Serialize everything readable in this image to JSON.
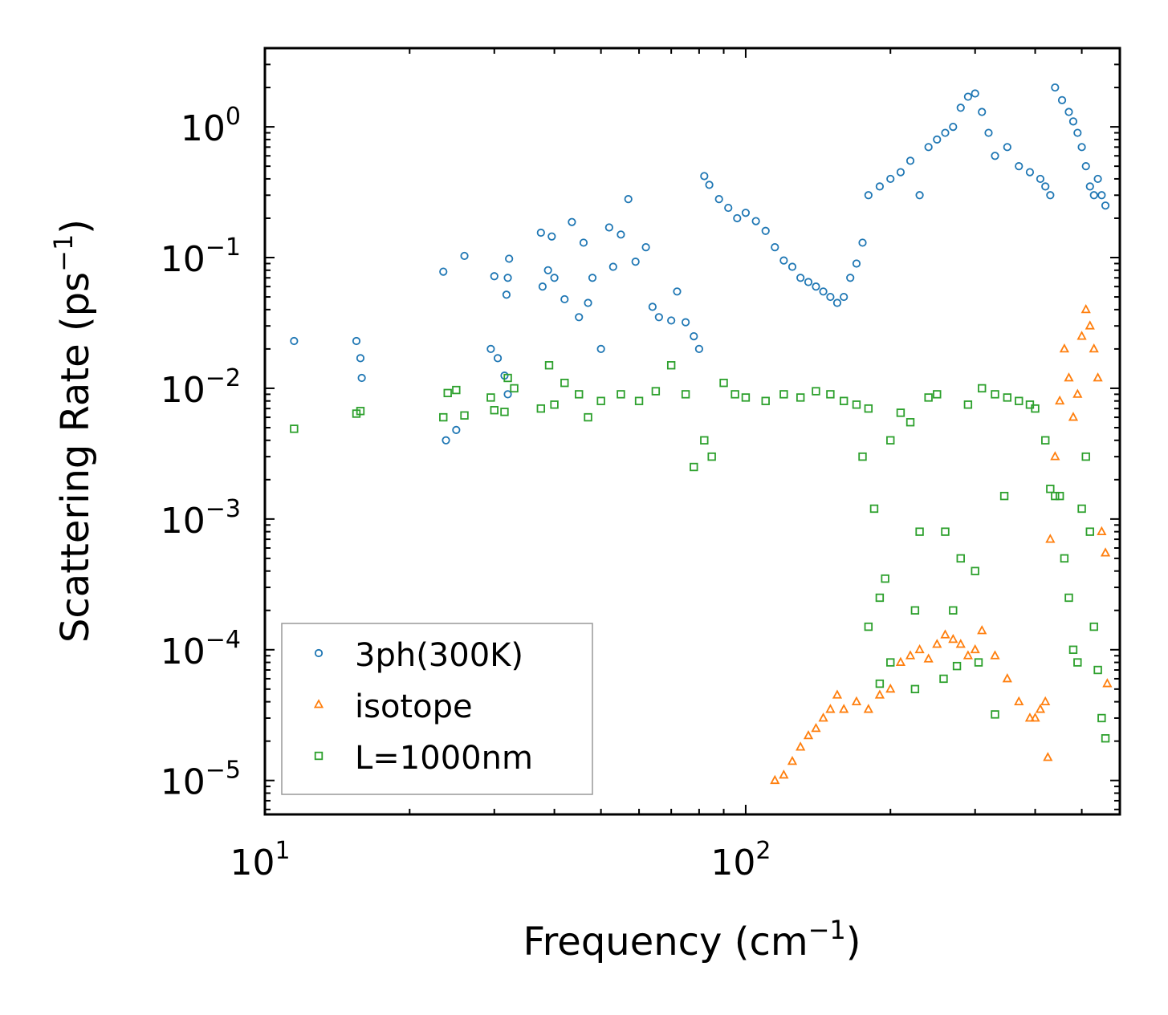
{
  "chart_data": {
    "type": "scatter",
    "x_scale": "log",
    "y_scale": "log",
    "xlabel": "Frequency (cm",
    "xlabel_sup": "−1",
    "xlabel_end": ")",
    "ylabel": "Scattering Rate (ps",
    "ylabel_sup": "−1",
    "ylabel_end": ")",
    "xlim": [
      10,
      600
    ],
    "ylim": [
      5.5e-06,
      4
    ],
    "x_ticks": [
      {
        "value": 10,
        "base": "10",
        "exp": "1"
      },
      {
        "value": 100,
        "base": "10",
        "exp": "2"
      }
    ],
    "y_ticks": [
      {
        "value": 1,
        "base": "10",
        "exp": "0"
      },
      {
        "value": 0.1,
        "base": "10",
        "exp": "−1"
      },
      {
        "value": 0.01,
        "base": "10",
        "exp": "−2"
      },
      {
        "value": 0.001,
        "base": "10",
        "exp": "−3"
      },
      {
        "value": 0.0001,
        "base": "10",
        "exp": "−4"
      },
      {
        "value": 1e-05,
        "base": "10",
        "exp": "−5"
      }
    ],
    "legend_position": "lower-left",
    "series": [
      {
        "name": "3ph(300K)",
        "marker": "circle",
        "color": "#1f77b4",
        "points": [
          [
            11.5,
            0.023
          ],
          [
            15.5,
            0.023
          ],
          [
            15.8,
            0.017
          ],
          [
            15.9,
            0.012
          ],
          [
            23.5,
            0.078
          ],
          [
            23.8,
            0.004
          ],
          [
            25,
            0.0048
          ],
          [
            26,
            0.103
          ],
          [
            29.5,
            0.02
          ],
          [
            30,
            0.072
          ],
          [
            30.5,
            0.017
          ],
          [
            31.5,
            0.0125
          ],
          [
            31.8,
            0.052
          ],
          [
            32,
            0.07
          ],
          [
            32.2,
            0.098
          ],
          [
            32,
            0.009
          ],
          [
            37.5,
            0.155
          ],
          [
            37.8,
            0.06
          ],
          [
            38.8,
            0.08
          ],
          [
            39.5,
            0.145
          ],
          [
            40,
            0.07
          ],
          [
            42,
            0.048
          ],
          [
            43.5,
            0.187
          ],
          [
            45,
            0.035
          ],
          [
            46,
            0.13
          ],
          [
            47,
            0.045
          ],
          [
            48,
            0.07
          ],
          [
            50,
            0.02
          ],
          [
            52,
            0.17
          ],
          [
            53,
            0.085
          ],
          [
            55,
            0.15
          ],
          [
            57,
            0.28
          ],
          [
            59,
            0.093
          ],
          [
            62,
            0.12
          ],
          [
            64,
            0.042
          ],
          [
            66,
            0.035
          ],
          [
            70,
            0.033
          ],
          [
            72,
            0.055
          ],
          [
            75,
            0.032
          ],
          [
            78,
            0.025
          ],
          [
            80,
            0.02
          ],
          [
            82,
            0.42
          ],
          [
            84,
            0.36
          ],
          [
            88,
            0.28
          ],
          [
            92,
            0.24
          ],
          [
            96,
            0.2
          ],
          [
            100,
            0.22
          ],
          [
            105,
            0.19
          ],
          [
            110,
            0.16
          ],
          [
            115,
            0.12
          ],
          [
            120,
            0.095
          ],
          [
            125,
            0.085
          ],
          [
            130,
            0.07
          ],
          [
            135,
            0.065
          ],
          [
            140,
            0.06
          ],
          [
            145,
            0.055
          ],
          [
            150,
            0.05
          ],
          [
            155,
            0.045
          ],
          [
            160,
            0.05
          ],
          [
            165,
            0.07
          ],
          [
            170,
            0.09
          ],
          [
            175,
            0.13
          ],
          [
            180,
            0.3
          ],
          [
            190,
            0.35
          ],
          [
            200,
            0.4
          ],
          [
            210,
            0.45
          ],
          [
            220,
            0.55
          ],
          [
            230,
            0.3
          ],
          [
            240,
            0.7
          ],
          [
            250,
            0.8
          ],
          [
            260,
            0.9
          ],
          [
            270,
            1.0
          ],
          [
            280,
            1.4
          ],
          [
            290,
            1.7
          ],
          [
            300,
            1.8
          ],
          [
            310,
            1.3
          ],
          [
            320,
            0.9
          ],
          [
            330,
            0.6
          ],
          [
            350,
            0.7
          ],
          [
            370,
            0.5
          ],
          [
            390,
            0.45
          ],
          [
            410,
            0.4
          ],
          [
            420,
            0.35
          ],
          [
            430,
            0.3
          ],
          [
            440,
            2.0
          ],
          [
            455,
            1.6
          ],
          [
            470,
            1.3
          ],
          [
            480,
            1.1
          ],
          [
            490,
            0.9
          ],
          [
            500,
            0.7
          ],
          [
            510,
            0.5
          ],
          [
            520,
            0.35
          ],
          [
            530,
            0.3
          ],
          [
            540,
            0.4
          ],
          [
            550,
            0.3
          ],
          [
            560,
            0.25
          ]
        ]
      },
      {
        "name": "isotope",
        "marker": "triangle",
        "color": "#ff7f0e",
        "points": [
          [
            115,
            1e-05
          ],
          [
            120,
            1.1e-05
          ],
          [
            125,
            1.4e-05
          ],
          [
            130,
            1.8e-05
          ],
          [
            135,
            2.2e-05
          ],
          [
            140,
            2.5e-05
          ],
          [
            145,
            3e-05
          ],
          [
            150,
            3.5e-05
          ],
          [
            155,
            4.5e-05
          ],
          [
            160,
            3.5e-05
          ],
          [
            170,
            4e-05
          ],
          [
            180,
            3.5e-05
          ],
          [
            190,
            4.5e-05
          ],
          [
            200,
            5e-05
          ],
          [
            210,
            8e-05
          ],
          [
            220,
            9e-05
          ],
          [
            230,
            0.0001
          ],
          [
            240,
            8.5e-05
          ],
          [
            250,
            0.00011
          ],
          [
            260,
            0.00013
          ],
          [
            270,
            0.00012
          ],
          [
            280,
            0.00011
          ],
          [
            290,
            9e-05
          ],
          [
            300,
            0.0001
          ],
          [
            310,
            0.00014
          ],
          [
            330,
            9e-05
          ],
          [
            350,
            6e-05
          ],
          [
            370,
            4e-05
          ],
          [
            390,
            3e-05
          ],
          [
            400,
            3e-05
          ],
          [
            410,
            3.5e-05
          ],
          [
            420,
            4e-05
          ],
          [
            430,
            0.0007
          ],
          [
            440,
            0.003
          ],
          [
            450,
            0.008
          ],
          [
            460,
            0.02
          ],
          [
            470,
            0.012
          ],
          [
            480,
            0.006
          ],
          [
            490,
            0.009
          ],
          [
            500,
            0.025
          ],
          [
            510,
            0.04
          ],
          [
            520,
            0.03
          ],
          [
            530,
            0.02
          ],
          [
            540,
            0.012
          ],
          [
            550,
            0.0008
          ],
          [
            560,
            0.00055
          ],
          [
            565,
            5.5e-05
          ],
          [
            425,
            1.5e-05
          ]
        ]
      },
      {
        "name": "L=1000nm",
        "marker": "square",
        "color": "#2ca02c",
        "points": [
          [
            11.5,
            0.0049
          ],
          [
            15.5,
            0.0064
          ],
          [
            15.8,
            0.0067
          ],
          [
            23.5,
            0.006
          ],
          [
            24,
            0.0092
          ],
          [
            25,
            0.0097
          ],
          [
            26,
            0.0062
          ],
          [
            29.5,
            0.0085
          ],
          [
            30,
            0.0068
          ],
          [
            31.5,
            0.0066
          ],
          [
            32,
            0.012
          ],
          [
            33,
            0.01
          ],
          [
            37.5,
            0.007
          ],
          [
            39,
            0.015
          ],
          [
            40,
            0.0075
          ],
          [
            42,
            0.011
          ],
          [
            45,
            0.009
          ],
          [
            47,
            0.006
          ],
          [
            50,
            0.008
          ],
          [
            55,
            0.009
          ],
          [
            60,
            0.008
          ],
          [
            65,
            0.0095
          ],
          [
            70,
            0.015
          ],
          [
            75,
            0.009
          ],
          [
            78,
            0.0025
          ],
          [
            82,
            0.004
          ],
          [
            85,
            0.003
          ],
          [
            90,
            0.011
          ],
          [
            95,
            0.009
          ],
          [
            100,
            0.0085
          ],
          [
            110,
            0.008
          ],
          [
            120,
            0.009
          ],
          [
            130,
            0.0085
          ],
          [
            140,
            0.0095
          ],
          [
            150,
            0.009
          ],
          [
            160,
            0.008
          ],
          [
            170,
            0.0075
          ],
          [
            175,
            0.003
          ],
          [
            180,
            0.007
          ],
          [
            185,
            0.0012
          ],
          [
            190,
            0.00025
          ],
          [
            195,
            0.00035
          ],
          [
            200,
            0.004
          ],
          [
            210,
            0.0065
          ],
          [
            220,
            0.0055
          ],
          [
            225,
            0.0002
          ],
          [
            230,
            0.0008
          ],
          [
            240,
            0.0085
          ],
          [
            250,
            0.009
          ],
          [
            260,
            0.0008
          ],
          [
            270,
            0.0002
          ],
          [
            280,
            0.0005
          ],
          [
            290,
            0.0075
          ],
          [
            300,
            0.0004
          ],
          [
            310,
            0.01
          ],
          [
            330,
            0.009
          ],
          [
            350,
            0.0085
          ],
          [
            370,
            0.008
          ],
          [
            390,
            0.0075
          ],
          [
            400,
            0.007
          ],
          [
            420,
            0.004
          ],
          [
            430,
            0.0017
          ],
          [
            440,
            0.0015
          ],
          [
            450,
            0.0015
          ],
          [
            460,
            0.0005
          ],
          [
            470,
            0.00025
          ],
          [
            480,
            0.0001
          ],
          [
            490,
            8e-05
          ],
          [
            500,
            0.0012
          ],
          [
            510,
            0.003
          ],
          [
            520,
            0.0008
          ],
          [
            530,
            0.00015
          ],
          [
            540,
            7e-05
          ],
          [
            550,
            3e-05
          ],
          [
            560,
            2.1e-05
          ],
          [
            345,
            0.0015
          ],
          [
            190,
            5.5e-05
          ],
          [
            225,
            5e-05
          ],
          [
            275,
            7.5e-05
          ],
          [
            330,
            3.2e-05
          ],
          [
            180,
            0.00015
          ],
          [
            200,
            8e-05
          ],
          [
            258,
            6e-05
          ],
          [
            305,
            8e-05
          ]
        ]
      }
    ]
  }
}
